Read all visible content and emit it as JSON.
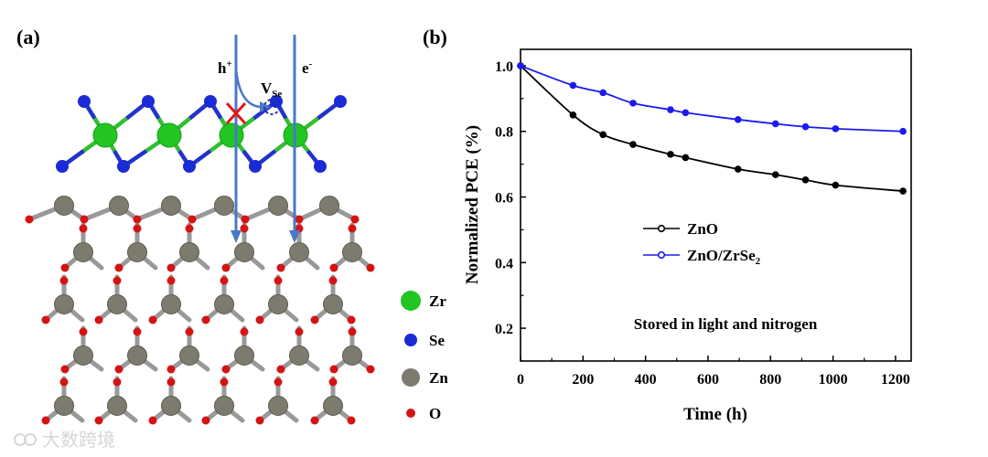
{
  "panel_a": {
    "label": "(a)",
    "hole_label": "h",
    "hole_sup": "+",
    "electron_label": "e",
    "electron_sup": "-",
    "vacancy_label": "V",
    "vacancy_sub": "Se",
    "legend": [
      {
        "symbol": "Zr",
        "color": "#22c522"
      },
      {
        "symbol": "Se",
        "color": "#1a2bd6"
      },
      {
        "symbol": "Zn",
        "color": "#7d7b6e"
      },
      {
        "symbol": "O",
        "color": "#d41414"
      }
    ],
    "colors": {
      "arrow": "#4a78c8",
      "block": "#e01818",
      "bond_zr": "#2fbf2f",
      "bond_se": "#2233cc",
      "bond_zn": "#888888",
      "bond_o": "#cc2222"
    }
  },
  "watermark": "大数跨境",
  "chart_data": {
    "label": "(b)",
    "type": "line",
    "xlabel": "Time (h)",
    "ylabel": "Normalized PCE (%)",
    "xlim": [
      0,
      1250
    ],
    "ylim": [
      0.1,
      1.05
    ],
    "xticks": [
      "0",
      "200",
      "400",
      "600",
      "800",
      "1000",
      "1200"
    ],
    "yticks": [
      "0.2",
      "0.4",
      "0.6",
      "0.8",
      "1.0"
    ],
    "annotation": "Stored in light and nitrogen",
    "series": [
      {
        "name": "ZnO",
        "name_sub": "",
        "color": "#000000",
        "x": [
          0,
          168,
          264,
          360,
          480,
          528,
          696,
          816,
          912,
          1008,
          1224
        ],
        "y": [
          1.0,
          0.85,
          0.79,
          0.76,
          0.73,
          0.72,
          0.685,
          0.668,
          0.652,
          0.636,
          0.618
        ]
      },
      {
        "name": "ZnO/ZrSe",
        "name_sub": "2",
        "color": "#1a1af0",
        "x": [
          0,
          168,
          264,
          360,
          480,
          528,
          696,
          816,
          912,
          1008,
          1224
        ],
        "y": [
          1.0,
          0.94,
          0.918,
          0.886,
          0.866,
          0.857,
          0.836,
          0.823,
          0.814,
          0.808,
          0.8
        ]
      }
    ]
  }
}
